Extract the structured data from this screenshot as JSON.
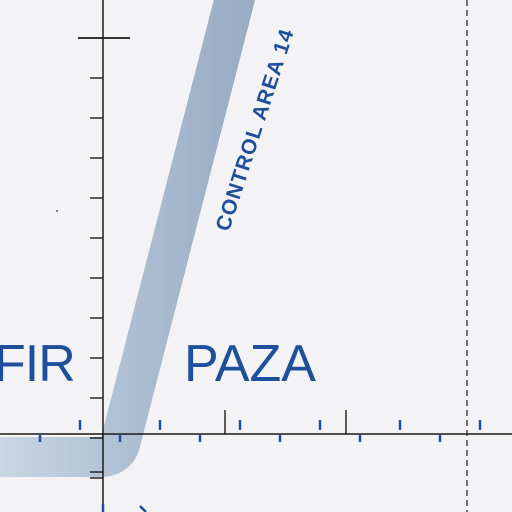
{
  "map": {
    "fir_label": "FIR",
    "area_name": "PAZA",
    "control_area_label": "CONTROL AREA 14",
    "colors": {
      "background": "#f3f3f6",
      "grid_line": "#1a1a1a",
      "label": "#1d4f9a",
      "route_band": "#aebfd3"
    }
  }
}
